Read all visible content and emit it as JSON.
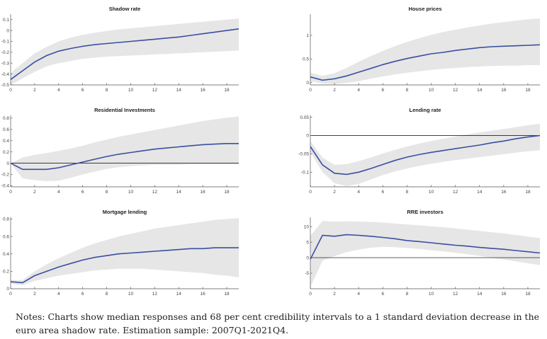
{
  "notes": "Notes: Charts show median responses and 68 per cent credibility intervals to a 1 standard deviation decrease in the euro area shadow rate. Estimation sample: 2007Q1-2021Q4.",
  "colors": {
    "median": "#3a4fa0",
    "band": "#e6e6e6",
    "zero_line": "#000000",
    "axis": "#555555"
  },
  "chart_data": [
    {
      "type": "area",
      "title": "Shadow rate",
      "xlim": [
        0,
        19
      ],
      "ylim": [
        -0.5,
        0.15
      ],
      "xticks": [
        0,
        2,
        4,
        6,
        8,
        10,
        12,
        14,
        16,
        18
      ],
      "yticks": [
        -0.5,
        -0.4,
        -0.3,
        -0.2,
        -0.1,
        0,
        0.1
      ],
      "ytick_labels": [
        "-0.5",
        "-0.4",
        "-0.3",
        "-0.2",
        "-0.1",
        "0",
        "0.1"
      ],
      "zero_line": false,
      "x": [
        0,
        1,
        2,
        3,
        4,
        5,
        6,
        7,
        8,
        9,
        10,
        11,
        12,
        13,
        14,
        15,
        16,
        17,
        18,
        19
      ],
      "median": [
        -0.45,
        -0.37,
        -0.29,
        -0.23,
        -0.19,
        -0.165,
        -0.145,
        -0.13,
        -0.12,
        -0.11,
        -0.1,
        -0.09,
        -0.08,
        -0.07,
        -0.06,
        -0.045,
        -0.03,
        -0.015,
        0.0,
        0.015
      ],
      "lower": [
        -0.5,
        -0.44,
        -0.38,
        -0.33,
        -0.3,
        -0.28,
        -0.26,
        -0.25,
        -0.24,
        -0.235,
        -0.23,
        -0.225,
        -0.22,
        -0.215,
        -0.21,
        -0.205,
        -0.2,
        -0.195,
        -0.19,
        -0.185
      ],
      "upper": [
        -0.39,
        -0.3,
        -0.21,
        -0.15,
        -0.1,
        -0.065,
        -0.04,
        -0.02,
        -0.005,
        0.01,
        0.02,
        0.03,
        0.04,
        0.05,
        0.06,
        0.07,
        0.08,
        0.09,
        0.1,
        0.11
      ]
    },
    {
      "type": "area",
      "title": "House prices",
      "xlim": [
        0,
        19
      ],
      "ylim": [
        -0.05,
        1.45
      ],
      "xticks": [
        0,
        2,
        4,
        6,
        8,
        10,
        12,
        14,
        16,
        18
      ],
      "yticks": [
        0,
        0.5,
        1
      ],
      "ytick_labels": [
        "0",
        "0.5",
        "1"
      ],
      "zero_line": false,
      "x": [
        0,
        1,
        2,
        3,
        4,
        5,
        6,
        7,
        8,
        9,
        10,
        11,
        12,
        13,
        14,
        15,
        16,
        17,
        18,
        19
      ],
      "median": [
        0.12,
        0.05,
        0.08,
        0.14,
        0.22,
        0.3,
        0.38,
        0.45,
        0.51,
        0.56,
        0.61,
        0.64,
        0.68,
        0.71,
        0.74,
        0.76,
        0.77,
        0.78,
        0.79,
        0.8
      ],
      "lower": [
        0.03,
        -0.02,
        -0.03,
        -0.01,
        0.03,
        0.08,
        0.13,
        0.17,
        0.21,
        0.24,
        0.27,
        0.29,
        0.31,
        0.33,
        0.34,
        0.35,
        0.36,
        0.36,
        0.37,
        0.37
      ],
      "upper": [
        0.21,
        0.14,
        0.2,
        0.31,
        0.44,
        0.56,
        0.67,
        0.77,
        0.86,
        0.94,
        1.01,
        1.07,
        1.12,
        1.17,
        1.21,
        1.25,
        1.28,
        1.31,
        1.34,
        1.36
      ]
    },
    {
      "type": "area",
      "title": "Residential Investments",
      "xlim": [
        0,
        19
      ],
      "ylim": [
        -0.42,
        0.85
      ],
      "xticks": [
        0,
        2,
        4,
        6,
        8,
        10,
        12,
        14,
        16,
        18
      ],
      "yticks": [
        -0.4,
        -0.2,
        0,
        0.2,
        0.4,
        0.6,
        0.8
      ],
      "ytick_labels": [
        "-0.4",
        "-0.2",
        "0",
        "0.2",
        "0.4",
        "0.6",
        "0.8"
      ],
      "zero_line": true,
      "x": [
        0,
        1,
        2,
        3,
        4,
        5,
        6,
        7,
        8,
        9,
        10,
        11,
        12,
        13,
        14,
        15,
        16,
        17,
        18,
        19
      ],
      "median": [
        0.0,
        -0.11,
        -0.11,
        -0.11,
        -0.08,
        -0.03,
        0.02,
        0.07,
        0.12,
        0.16,
        0.19,
        0.22,
        0.25,
        0.27,
        0.29,
        0.31,
        0.33,
        0.34,
        0.35,
        0.35
      ],
      "lower": [
        0.0,
        -0.27,
        -0.3,
        -0.32,
        -0.31,
        -0.26,
        -0.2,
        -0.15,
        -0.1,
        -0.07,
        -0.05,
        -0.04,
        -0.03,
        -0.03,
        -0.03,
        -0.02,
        -0.02,
        -0.02,
        -0.02,
        -0.02
      ],
      "upper": [
        0.0,
        0.1,
        0.15,
        0.18,
        0.22,
        0.26,
        0.31,
        0.37,
        0.42,
        0.47,
        0.51,
        0.55,
        0.59,
        0.63,
        0.67,
        0.71,
        0.75,
        0.78,
        0.81,
        0.83
      ]
    },
    {
      "type": "area",
      "title": "Lending rate",
      "xlim": [
        0,
        19
      ],
      "ylim": [
        -0.14,
        0.055
      ],
      "xticks": [
        0,
        2,
        4,
        6,
        8,
        10,
        12,
        14,
        16,
        18
      ],
      "yticks": [
        -0.1,
        -0.05,
        0,
        0.05
      ],
      "ytick_labels": [
        "-0.1",
        "-0.05",
        "0",
        "0.05"
      ],
      "zero_line": true,
      "x": [
        0,
        1,
        2,
        3,
        4,
        5,
        6,
        7,
        8,
        9,
        10,
        11,
        12,
        13,
        14,
        15,
        16,
        17,
        18,
        19
      ],
      "median": [
        -0.03,
        -0.08,
        -0.103,
        -0.106,
        -0.1,
        -0.09,
        -0.079,
        -0.068,
        -0.059,
        -0.052,
        -0.046,
        -0.041,
        -0.036,
        -0.031,
        -0.026,
        -0.02,
        -0.015,
        -0.009,
        -0.004,
        0.0
      ],
      "lower": [
        -0.045,
        -0.1,
        -0.13,
        -0.138,
        -0.132,
        -0.12,
        -0.108,
        -0.098,
        -0.09,
        -0.083,
        -0.077,
        -0.072,
        -0.067,
        -0.063,
        -0.059,
        -0.055,
        -0.051,
        -0.047,
        -0.043,
        -0.04
      ],
      "upper": [
        -0.015,
        -0.06,
        -0.08,
        -0.078,
        -0.07,
        -0.06,
        -0.049,
        -0.039,
        -0.03,
        -0.022,
        -0.015,
        -0.009,
        -0.003,
        0.003,
        0.008,
        0.013,
        0.018,
        0.023,
        0.028,
        0.032
      ]
    },
    {
      "type": "area",
      "title": "Mortgage lending",
      "xlim": [
        0,
        19
      ],
      "ylim": [
        0,
        0.82
      ],
      "xticks": [
        0,
        2,
        4,
        6,
        8,
        10,
        12,
        14,
        16,
        18
      ],
      "yticks": [
        0,
        0.2,
        0.4,
        0.6,
        0.8
      ],
      "ytick_labels": [
        "0",
        "0.2",
        "0.4",
        "0.6",
        "0.8"
      ],
      "zero_line": false,
      "x": [
        0,
        1,
        2,
        3,
        4,
        5,
        6,
        7,
        8,
        9,
        10,
        11,
        12,
        13,
        14,
        15,
        16,
        17,
        18,
        19
      ],
      "median": [
        0.08,
        0.07,
        0.15,
        0.2,
        0.25,
        0.29,
        0.33,
        0.36,
        0.38,
        0.4,
        0.41,
        0.42,
        0.43,
        0.44,
        0.45,
        0.46,
        0.46,
        0.47,
        0.47,
        0.47
      ],
      "lower": [
        0.06,
        0.04,
        0.09,
        0.12,
        0.15,
        0.17,
        0.19,
        0.21,
        0.22,
        0.23,
        0.23,
        0.23,
        0.22,
        0.21,
        0.2,
        0.19,
        0.18,
        0.16,
        0.15,
        0.13
      ],
      "upper": [
        0.1,
        0.1,
        0.2,
        0.28,
        0.35,
        0.41,
        0.47,
        0.52,
        0.56,
        0.6,
        0.63,
        0.66,
        0.69,
        0.71,
        0.73,
        0.75,
        0.77,
        0.79,
        0.8,
        0.81
      ]
    },
    {
      "type": "area",
      "title": "RRE investors",
      "xlim": [
        0,
        19
      ],
      "ylim": [
        -10,
        13
      ],
      "xticks": [
        0,
        2,
        4,
        6,
        8,
        10,
        12,
        14,
        16,
        18
      ],
      "yticks": [
        -5,
        0,
        5,
        10
      ],
      "ytick_labels": [
        "-5",
        "0",
        "5",
        "10"
      ],
      "zero_line": true,
      "x": [
        0,
        1,
        2,
        3,
        4,
        5,
        6,
        7,
        8,
        9,
        10,
        11,
        12,
        13,
        14,
        15,
        16,
        17,
        18,
        19
      ],
      "median": [
        -0.5,
        7.2,
        6.9,
        7.4,
        7.2,
        6.9,
        6.5,
        6.1,
        5.5,
        5.2,
        4.8,
        4.4,
        4.0,
        3.7,
        3.3,
        3.0,
        2.7,
        2.3,
        1.9,
        1.5
      ],
      "lower": [
        -9.5,
        -1.0,
        0.5,
        1.8,
        2.6,
        3.2,
        3.5,
        3.4,
        3.1,
        2.8,
        2.4,
        2.0,
        1.6,
        1.1,
        0.6,
        0.0,
        -0.6,
        -1.2,
        -1.8,
        -2.4
      ],
      "upper": [
        7.0,
        11.8,
        11.6,
        11.7,
        11.6,
        11.5,
        11.3,
        11.0,
        10.7,
        10.4,
        10.1,
        9.8,
        9.4,
        9.0,
        8.6,
        8.2,
        7.8,
        7.3,
        6.8,
        6.3
      ]
    }
  ]
}
